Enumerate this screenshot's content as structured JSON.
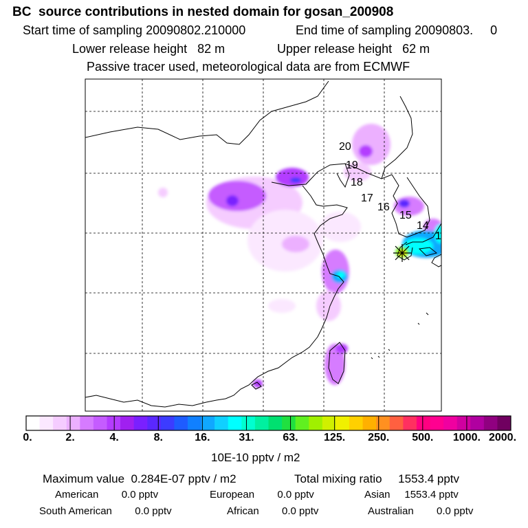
{
  "header": {
    "title": "BC  source contributions in nested domain for gosan_200908",
    "start_label": "Start time of sampling 20090802.210000",
    "end_label": "End time of sampling 20090803.     0",
    "lower_release": "Lower release height   82 m",
    "upper_release": "Upper release height   62 m",
    "tracer_note": "Passive tracer used, meteorological data are from ECMWF"
  },
  "map": {
    "trajectory_labels": [
      "20",
      "19",
      "18",
      "17",
      "16",
      "15",
      "14",
      "1"
    ],
    "receptor_marker": "star-marker"
  },
  "colorbar": {
    "ticks": [
      "0.",
      "2.",
      "4.",
      "8.",
      "16.",
      "31.",
      "63.",
      "125.",
      "250.",
      "500.",
      "1000.",
      "2000."
    ],
    "unit": "10E-10 pptv / m2",
    "colors": [
      "#ffffff",
      "#fbe8ff",
      "#f5ccff",
      "#ecb0ff",
      "#d67bff",
      "#c55cff",
      "#b43cff",
      "#a020f0",
      "#7a20ff",
      "#5a28ff",
      "#3c3cff",
      "#1e5cff",
      "#1080ff",
      "#10a8ff",
      "#10d0ff",
      "#00ffff",
      "#00ffd0",
      "#00f0a0",
      "#00e070",
      "#20e040",
      "#60f020",
      "#a0f000",
      "#d0f000",
      "#f0f000",
      "#ffd000",
      "#ffb000",
      "#ff9020",
      "#ff6040",
      "#ff3060",
      "#ff0080",
      "#ff0090",
      "#f000a0",
      "#d000a0",
      "#b000a0",
      "#900080",
      "#700060"
    ]
  },
  "summary": {
    "max_label": "Maximum value  0.284E-07 pptv / m2",
    "total_label": "Total mixing ratio     1553.4 pptv",
    "american": "American        0.0 pptv",
    "european": "European        0.0 pptv",
    "asian": "Asian     1553.4 pptv",
    "south_american": "South American        0.0 pptv",
    "african": "African        0.0 pptv",
    "australian": "Australian        0.0 pptv"
  }
}
